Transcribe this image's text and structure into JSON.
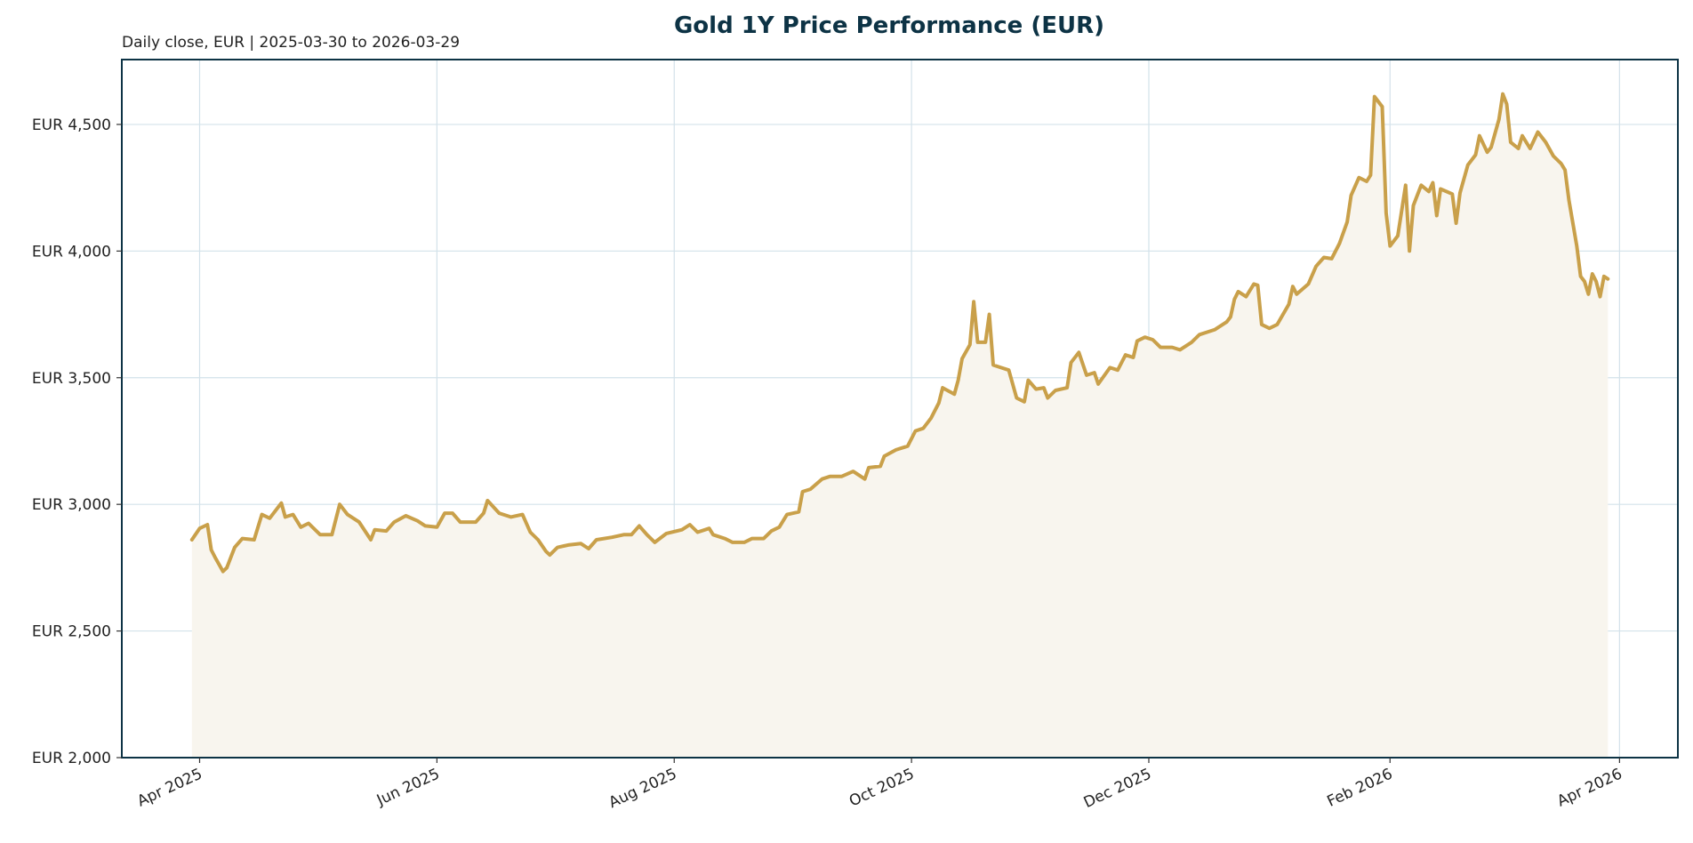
{
  "chart_data": {
    "type": "area",
    "title": "Gold 1Y Price Performance (EUR)",
    "subtitle": "Daily close, EUR | 2025-03-30 to 2026-03-29",
    "xlabel": "",
    "ylabel": "",
    "xlim": [
      "2025-03-12",
      "2026-04-16"
    ],
    "ylim": [
      2000,
      4756
    ],
    "grid": true,
    "legend": "none",
    "y_ticks": [
      2000,
      2500,
      3000,
      3500,
      4000,
      4500
    ],
    "y_tick_labels": [
      "EUR 2,000",
      "EUR 2,500",
      "EUR 3,000",
      "EUR 3,500",
      "EUR 4,000",
      "EUR 4,500"
    ],
    "x_ticks": [
      "2025-04-01",
      "2025-06-01",
      "2025-08-01",
      "2025-10-01",
      "2025-12-01",
      "2026-02-01",
      "2026-04-01"
    ],
    "x_tick_labels": [
      "Apr 2025",
      "Jun 2025",
      "Aug 2025",
      "Oct 2025",
      "Dec 2025",
      "Feb 2026",
      "Apr 2026"
    ],
    "colors": {
      "line": "#c9a04a",
      "fill": "#f8f5ee",
      "axes": "#0d3345",
      "grid": "#d3e2ea",
      "title": "#0d3345"
    },
    "x": [
      "2025-03-30",
      "2025-04-01",
      "2025-04-03",
      "2025-04-04",
      "2025-04-05",
      "2025-04-07",
      "2025-04-08",
      "2025-04-10",
      "2025-04-12",
      "2025-04-15",
      "2025-04-17",
      "2025-04-19",
      "2025-04-22",
      "2025-04-23",
      "2025-04-25",
      "2025-04-27",
      "2025-04-29",
      "2025-05-02",
      "2025-05-05",
      "2025-05-07",
      "2025-05-09",
      "2025-05-12",
      "2025-05-15",
      "2025-05-16",
      "2025-05-19",
      "2025-05-21",
      "2025-05-24",
      "2025-05-27",
      "2025-05-29",
      "2025-06-01",
      "2025-06-03",
      "2025-06-05",
      "2025-06-07",
      "2025-06-11",
      "2025-06-13",
      "2025-06-14",
      "2025-06-17",
      "2025-06-20",
      "2025-06-23",
      "2025-06-25",
      "2025-06-27",
      "2025-06-29",
      "2025-06-30",
      "2025-07-02",
      "2025-07-05",
      "2025-07-08",
      "2025-07-10",
      "2025-07-12",
      "2025-07-16",
      "2025-07-19",
      "2025-07-21",
      "2025-07-23",
      "2025-07-25",
      "2025-07-27",
      "2025-07-30",
      "2025-08-03",
      "2025-08-05",
      "2025-08-07",
      "2025-08-10",
      "2025-08-11",
      "2025-08-14",
      "2025-08-16",
      "2025-08-19",
      "2025-08-21",
      "2025-08-24",
      "2025-08-26",
      "2025-08-28",
      "2025-08-30",
      "2025-09-02",
      "2025-09-03",
      "2025-09-05",
      "2025-09-08",
      "2025-09-10",
      "2025-09-13",
      "2025-09-16",
      "2025-09-19",
      "2025-09-20",
      "2025-09-23",
      "2025-09-24",
      "2025-09-27",
      "2025-09-30",
      "2025-10-02",
      "2025-10-04",
      "2025-10-06",
      "2025-10-08",
      "2025-10-09",
      "2025-10-12",
      "2025-10-13",
      "2025-10-14",
      "2025-10-16",
      "2025-10-17",
      "2025-10-18",
      "2025-10-20",
      "2025-10-21",
      "2025-10-22",
      "2025-10-24",
      "2025-10-26",
      "2025-10-28",
      "2025-10-30",
      "2025-10-31",
      "2025-11-02",
      "2025-11-04",
      "2025-11-05",
      "2025-11-07",
      "2025-11-10",
      "2025-11-11",
      "2025-11-13",
      "2025-11-15",
      "2025-11-17",
      "2025-11-18",
      "2025-11-21",
      "2025-11-23",
      "2025-11-25",
      "2025-11-27",
      "2025-11-28",
      "2025-11-30",
      "2025-12-02",
      "2025-12-04",
      "2025-12-07",
      "2025-12-09",
      "2025-12-12",
      "2025-12-14",
      "2025-12-16",
      "2025-12-18",
      "2025-12-21",
      "2025-12-22",
      "2025-12-23",
      "2025-12-24",
      "2025-12-26",
      "2025-12-28",
      "2025-12-29",
      "2025-12-30",
      "2026-01-01",
      "2026-01-03",
      "2026-01-06",
      "2026-01-07",
      "2026-01-08",
      "2026-01-11",
      "2026-01-13",
      "2026-01-15",
      "2026-01-17",
      "2026-01-19",
      "2026-01-21",
      "2026-01-22",
      "2026-01-24",
      "2026-01-26",
      "2026-01-27",
      "2026-01-28",
      "2026-01-30",
      "2026-01-31",
      "2026-02-01",
      "2026-02-03",
      "2026-02-05",
      "2026-02-06",
      "2026-02-07",
      "2026-02-09",
      "2026-02-11",
      "2026-02-12",
      "2026-02-13",
      "2026-02-14",
      "2026-02-17",
      "2026-02-18",
      "2026-02-19",
      "2026-02-21",
      "2026-02-23",
      "2026-02-24",
      "2026-02-26",
      "2026-02-27",
      "2026-03-01",
      "2026-03-02",
      "2026-03-03",
      "2026-03-04",
      "2026-03-06",
      "2026-03-07",
      "2026-03-09",
      "2026-03-11",
      "2026-03-13",
      "2026-03-15",
      "2026-03-17",
      "2026-03-18",
      "2026-03-19",
      "2026-03-21",
      "2026-03-22",
      "2026-03-23",
      "2026-03-24",
      "2026-03-25",
      "2026-03-26",
      "2026-03-27",
      "2026-03-28",
      "2026-03-29"
    ],
    "y": [
      2860,
      2905,
      2920,
      2820,
      2790,
      2735,
      2750,
      2830,
      2865,
      2860,
      2960,
      2945,
      3005,
      2950,
      2960,
      2910,
      2925,
      2880,
      2880,
      3000,
      2960,
      2930,
      2860,
      2900,
      2895,
      2930,
      2955,
      2935,
      2915,
      2910,
      2965,
      2965,
      2930,
      2930,
      2965,
      3015,
      2965,
      2950,
      2960,
      2890,
      2860,
      2815,
      2800,
      2830,
      2840,
      2845,
      2825,
      2860,
      2870,
      2880,
      2880,
      2915,
      2880,
      2850,
      2885,
      2900,
      2920,
      2890,
      2905,
      2880,
      2865,
      2850,
      2850,
      2865,
      2865,
      2895,
      2910,
      2960,
      2970,
      3050,
      3060,
      3100,
      3110,
      3110,
      3130,
      3100,
      3145,
      3150,
      3190,
      3215,
      3230,
      3290,
      3300,
      3340,
      3400,
      3460,
      3435,
      3490,
      3575,
      3630,
      3800,
      3640,
      3640,
      3750,
      3550,
      3540,
      3530,
      3420,
      3405,
      3490,
      3455,
      3460,
      3420,
      3450,
      3460,
      3560,
      3600,
      3510,
      3520,
      3475,
      3540,
      3530,
      3590,
      3580,
      3645,
      3660,
      3650,
      3620,
      3620,
      3610,
      3640,
      3670,
      3680,
      3690,
      3720,
      3740,
      3810,
      3840,
      3820,
      3870,
      3865,
      3710,
      3695,
      3710,
      3790,
      3860,
      3830,
      3870,
      3940,
      3975,
      3970,
      4030,
      4115,
      4220,
      4290,
      4275,
      4300,
      4610,
      4570,
      4150,
      4020,
      4060,
      4260,
      4000,
      4180,
      4260,
      4235,
      4270,
      4140,
      4245,
      4225,
      4110,
      4230,
      4340,
      4380,
      4455,
      4390,
      4410,
      4520,
      4620,
      4580,
      4430,
      4405,
      4455,
      4405,
      4470,
      4430,
      4375,
      4345,
      4320,
      4200,
      4020,
      3900,
      3880,
      3830,
      3910,
      3880,
      3820,
      3900,
      3890
    ]
  }
}
